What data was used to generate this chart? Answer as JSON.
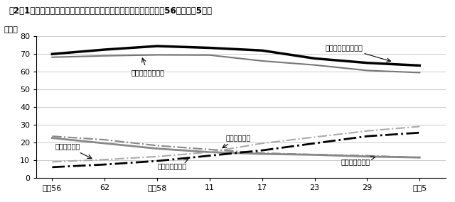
{
  "title": "図2－1　年少人口、生産年齢人口及び老年人口の割合の推移（昭和56年～令和5年）",
  "ylabel": "（％）",
  "xtick_labels": [
    "昭和56",
    "62",
    "平成58",
    "11",
    "17",
    "23",
    "29",
    "令和5"
  ],
  "x_values": [
    0,
    1,
    2,
    3,
    4,
    5,
    6,
    7
  ],
  "ylim": [
    0,
    80
  ],
  "yticks": [
    0,
    10,
    20,
    30,
    40,
    50,
    60,
    70,
    80
  ],
  "series": {
    "yokohama_working": {
      "label": "横浜市生産年齢人口",
      "values": [
        70.0,
        72.5,
        74.5,
        73.5,
        72.0,
        67.5,
        65.0,
        63.5
      ],
      "color": "#000000",
      "linewidth": 2.5,
      "linestyle": "solid"
    },
    "national_working": {
      "label": "全国生産年齢人口",
      "values": [
        68.2,
        69.0,
        69.5,
        69.4,
        66.1,
        63.8,
        60.7,
        59.5
      ],
      "color": "#777777",
      "linewidth": 1.5,
      "linestyle": "solid"
    },
    "national_young": {
      "label": "全国年少人口",
      "values": [
        23.5,
        21.5,
        18.2,
        16.0,
        14.0,
        13.1,
        12.5,
        11.4
      ],
      "color": "#888888",
      "linewidth": 1.5,
      "linestyle": "dashdot"
    },
    "yokohama_young": {
      "label": "横浜市年少人口",
      "values": [
        22.5,
        19.5,
        16.5,
        14.5,
        13.5,
        13.0,
        12.0,
        11.5
      ],
      "color": "#888888",
      "linewidth": 2.0,
      "linestyle": "solid"
    },
    "national_elderly": {
      "label": "全国老年人口",
      "values": [
        9.0,
        10.3,
        12.0,
        14.5,
        19.5,
        23.0,
        26.5,
        29.0
      ],
      "color": "#aaaaaa",
      "linewidth": 1.5,
      "linestyle": "dashdot"
    },
    "yokohama_elderly": {
      "label": "横浜市老年人口",
      "values": [
        6.0,
        7.5,
        9.5,
        12.5,
        15.5,
        19.5,
        23.5,
        25.5
      ],
      "color": "#000000",
      "linewidth": 2.0,
      "linestyle": "dashdot"
    }
  },
  "background_color": "#ffffff",
  "grid_color": "#cccccc"
}
